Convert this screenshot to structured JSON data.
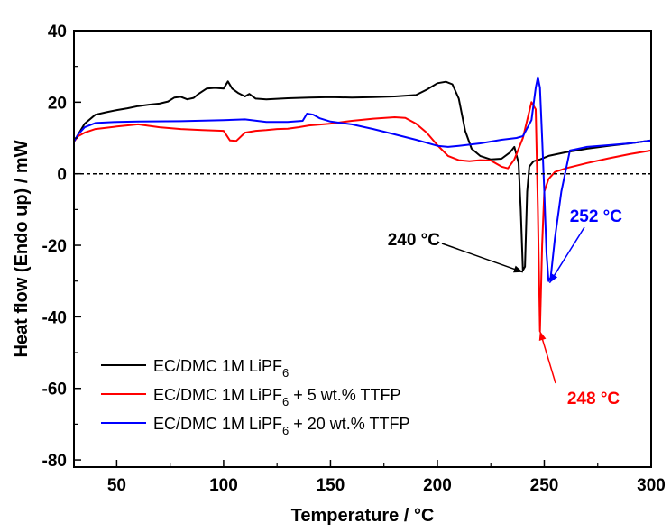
{
  "chart_data": {
    "type": "line",
    "xlabel": "Temperature / °C",
    "ylabel": "Heat flow (Endo up) / mW",
    "xlim": [
      30,
      300
    ],
    "ylim": [
      -82,
      40
    ],
    "xticks": [
      50,
      100,
      150,
      200,
      250,
      300
    ],
    "yticks": [
      40,
      20,
      0,
      -20,
      -40,
      -60,
      -80
    ],
    "zero_line": {
      "y": 0,
      "style": "dashed"
    },
    "legend_position": "bottom-left",
    "series": [
      {
        "name": "EC/DMC 1M LiPF",
        "name_sub": "6",
        "name_suffix": "",
        "color": "#000000",
        "x": [
          30,
          32,
          35,
          40,
          45,
          50,
          55,
          60,
          65,
          70,
          74,
          77,
          80,
          83,
          86,
          88,
          92,
          96,
          100,
          102,
          104,
          107,
          110,
          112,
          115,
          120,
          130,
          140,
          150,
          160,
          170,
          180,
          190,
          195,
          200,
          204,
          207,
          210,
          213,
          216,
          220,
          225,
          230,
          234,
          236,
          238,
          239,
          240,
          241,
          242,
          243,
          245,
          248,
          252,
          260,
          270,
          280,
          290,
          300
        ],
        "y": [
          9,
          11,
          14,
          16.5,
          17.2,
          17.8,
          18.3,
          18.9,
          19.3,
          19.6,
          20.2,
          21.3,
          21.5,
          20.8,
          21.2,
          22.2,
          23.8,
          24.0,
          23.8,
          25.8,
          23.8,
          22.5,
          21.6,
          22.3,
          21.0,
          20.8,
          21.1,
          21.3,
          21.4,
          21.3,
          21.4,
          21.6,
          22.0,
          23.5,
          25.3,
          25.7,
          25.0,
          21.0,
          12.0,
          7.0,
          5.0,
          4.0,
          4.2,
          6.0,
          7.5,
          3.0,
          -10.0,
          -27.0,
          -26.0,
          -5.0,
          2.0,
          3.5,
          4.0,
          5.0,
          6.0,
          7.0,
          7.8,
          8.5,
          9.3
        ]
      },
      {
        "name": "EC/DMC 1M LiPF",
        "name_sub": "6",
        "name_suffix": " + 5 wt.% TTFP",
        "color": "#ff0000",
        "x": [
          30,
          32,
          35,
          40,
          50,
          60,
          70,
          80,
          90,
          100,
          103,
          106,
          110,
          115,
          120,
          125,
          130,
          135,
          140,
          150,
          160,
          170,
          180,
          185,
          190,
          195,
          200,
          205,
          210,
          215,
          220,
          225,
          230,
          233,
          236,
          240,
          244,
          246,
          247,
          248,
          249,
          250,
          252,
          255,
          260,
          270,
          280,
          290,
          300
        ],
        "y": [
          9,
          10.5,
          11.5,
          12.5,
          13.2,
          13.8,
          13.0,
          12.5,
          12.2,
          12.0,
          9.3,
          9.2,
          11.5,
          12.0,
          12.2,
          12.5,
          12.6,
          13.0,
          13.5,
          14.0,
          14.8,
          15.4,
          15.8,
          15.6,
          14.0,
          11.5,
          8.0,
          5.0,
          3.8,
          3.5,
          3.8,
          3.7,
          2.0,
          1.5,
          4.0,
          10.0,
          20.0,
          18.0,
          -10.0,
          -44.0,
          -20.0,
          -5.0,
          -1.5,
          0.5,
          1.5,
          3.0,
          4.3,
          5.5,
          6.5
        ]
      },
      {
        "name": "EC/DMC 1M LiPF",
        "name_sub": "6",
        "name_suffix": " + 20 wt.% TTFP",
        "color": "#0000ff",
        "x": [
          30,
          32,
          35,
          40,
          50,
          60,
          80,
          100,
          110,
          120,
          130,
          137,
          139,
          142,
          145,
          150,
          160,
          170,
          180,
          190,
          200,
          205,
          210,
          220,
          230,
          237,
          240,
          244,
          246,
          247,
          248,
          249,
          250,
          251,
          252,
          253,
          255,
          258,
          262,
          270,
          280,
          290,
          300
        ],
        "y": [
          9,
          11,
          13,
          14.2,
          14.5,
          14.6,
          14.7,
          15.0,
          15.2,
          14.5,
          14.5,
          14.8,
          16.8,
          16.5,
          15.5,
          14.6,
          13.8,
          12.5,
          11.0,
          9.5,
          7.8,
          7.5,
          7.8,
          8.5,
          9.5,
          10.0,
          10.5,
          15.0,
          24.0,
          27.0,
          24.0,
          10.0,
          -5.0,
          -22.0,
          -30.0,
          -29.0,
          -18.0,
          -5.0,
          6.5,
          7.5,
          8.0,
          8.5,
          9.3
        ]
      }
    ],
    "annotations": [
      {
        "text": "240 °C",
        "color": "#000000",
        "point": [
          240,
          -27.5
        ]
      },
      {
        "text": "248 °C",
        "color": "#ff0000",
        "point": [
          248,
          -44
        ]
      },
      {
        "text": "252 °C",
        "color": "#0000ff",
        "point": [
          252.5,
          -30.5
        ]
      }
    ]
  }
}
